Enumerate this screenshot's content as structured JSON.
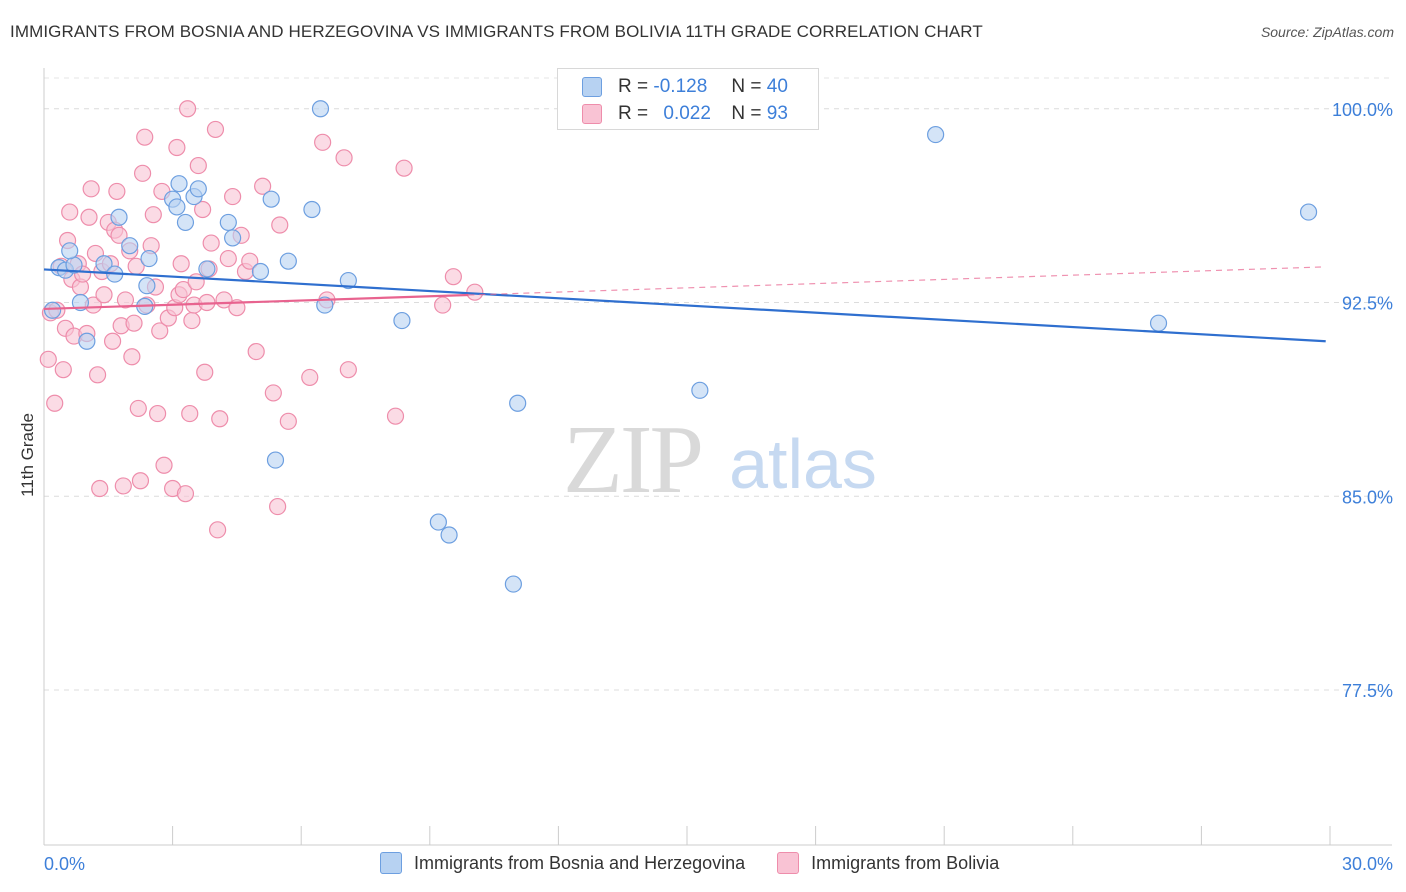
{
  "title": "IMMIGRANTS FROM BOSNIA AND HERZEGOVINA VS IMMIGRANTS FROM BOLIVIA 11TH GRADE CORRELATION CHART",
  "source": "Source: ZipAtlas.com",
  "watermark": {
    "zip": "ZIP",
    "atlas": "atlas"
  },
  "legend": {
    "r_label": "R =",
    "n_label": "N =",
    "rows": [
      {
        "r": "-0.128",
        "n": "40"
      },
      {
        "r": "0.022",
        "n": "93"
      }
    ]
  },
  "chart_data": {
    "type": "scatter",
    "title": "IMMIGRANTS FROM BOSNIA AND HERZEGOVINA VS IMMIGRANTS FROM BOLIVIA 11TH GRADE CORRELATION CHART",
    "xlabel": "",
    "ylabel": "11th Grade",
    "xlim": [
      0,
      30
    ],
    "ylim": [
      71.5,
      101.5
    ],
    "x_tick_labels": [
      "0.0%",
      "30.0%"
    ],
    "y_ticks": [
      77.5,
      85.0,
      92.5,
      100.0
    ],
    "y_tick_labels": [
      "77.5%",
      "85.0%",
      "92.5%",
      "100.0%"
    ],
    "grid": true,
    "colors": {
      "bosnia_fill": "#b7d2f2",
      "bosnia_stroke": "#6d9fe0",
      "bosnia_line": "#2f6fcf",
      "bolivia_fill": "#f9c3d4",
      "bolivia_stroke": "#ee8dab",
      "bolivia_line": "#e8638f",
      "axis_text": "#3d7fd9"
    },
    "series": [
      {
        "name": "Immigrants from Bosnia and Herzegovina",
        "r": -0.128,
        "n": 40,
        "trend": {
          "x": [
            0.0,
            29.9
          ],
          "y": [
            93.78,
            91.0
          ]
        },
        "x": [
          0.2,
          0.35,
          0.5,
          0.7,
          0.6,
          0.85,
          1.0,
          1.4,
          1.65,
          1.75,
          2.0,
          2.4,
          2.45,
          2.35,
          3.0,
          3.1,
          3.3,
          3.15,
          3.5,
          3.6,
          3.8,
          4.3,
          4.4,
          5.05,
          5.3,
          5.7,
          5.4,
          6.25,
          6.55,
          6.45,
          7.1,
          8.35,
          9.45,
          9.2,
          11.05,
          10.95,
          15.3,
          20.8,
          26.0,
          29.5
        ],
        "y": [
          92.2,
          93.85,
          93.75,
          93.95,
          94.5,
          92.5,
          91.0,
          94.0,
          93.6,
          95.8,
          94.7,
          93.15,
          94.2,
          92.35,
          96.5,
          96.2,
          95.6,
          97.1,
          96.6,
          96.9,
          93.8,
          95.6,
          95.0,
          93.7,
          96.5,
          94.1,
          86.4,
          96.1,
          92.4,
          100.0,
          93.35,
          91.8,
          83.5,
          84.0,
          88.6,
          81.6,
          89.1,
          99.0,
          91.7,
          96.0
        ]
      },
      {
        "name": "Immigrants from Bolivia",
        "r": 0.022,
        "n": 93,
        "trend": {
          "x": [
            0.0,
            29.9
          ],
          "y": [
            92.25,
            93.88
          ]
        },
        "x": [
          0.1,
          0.15,
          0.25,
          0.3,
          0.4,
          0.45,
          0.5,
          0.55,
          0.6,
          0.65,
          0.7,
          0.8,
          0.85,
          0.9,
          1.0,
          1.05,
          1.1,
          1.15,
          1.2,
          1.25,
          1.3,
          1.35,
          1.4,
          1.5,
          1.55,
          1.6,
          1.65,
          1.7,
          1.75,
          1.8,
          1.85,
          1.9,
          2.0,
          2.05,
          2.1,
          2.15,
          2.2,
          2.25,
          2.3,
          2.35,
          2.4,
          2.5,
          2.55,
          2.6,
          2.65,
          2.7,
          2.75,
          2.8,
          2.9,
          3.0,
          3.05,
          3.1,
          3.15,
          3.2,
          3.25,
          3.3,
          3.35,
          3.4,
          3.45,
          3.5,
          3.55,
          3.6,
          3.7,
          3.75,
          3.8,
          3.85,
          3.9,
          4.0,
          4.05,
          4.1,
          4.2,
          4.3,
          4.4,
          4.5,
          4.6,
          4.7,
          4.8,
          4.95,
          5.1,
          5.35,
          5.45,
          5.5,
          5.7,
          6.2,
          6.5,
          6.6,
          7.0,
          7.1,
          8.2,
          8.4,
          9.3,
          9.55,
          10.05
        ],
        "y": [
          90.3,
          92.1,
          88.6,
          92.2,
          93.9,
          89.9,
          91.5,
          94.9,
          96.0,
          93.4,
          91.2,
          94.0,
          93.1,
          93.6,
          91.3,
          95.8,
          96.9,
          92.4,
          94.4,
          89.7,
          85.3,
          93.7,
          92.8,
          95.6,
          94.0,
          91.0,
          95.3,
          96.8,
          95.1,
          91.6,
          85.4,
          92.6,
          94.5,
          90.4,
          91.7,
          93.9,
          88.4,
          85.6,
          97.5,
          98.9,
          92.4,
          94.7,
          95.9,
          93.1,
          88.2,
          91.4,
          96.8,
          86.2,
          91.9,
          85.3,
          92.3,
          98.5,
          92.8,
          94.0,
          93.0,
          85.1,
          100.0,
          88.2,
          91.8,
          92.4,
          93.3,
          97.8,
          96.1,
          89.8,
          92.5,
          93.8,
          94.8,
          99.2,
          83.7,
          88.0,
          92.6,
          94.2,
          96.6,
          92.3,
          95.1,
          93.7,
          94.1,
          90.6,
          97.0,
          89.0,
          84.6,
          95.5,
          87.9,
          89.6,
          98.7,
          92.6,
          98.1,
          89.9,
          88.1,
          97.7,
          92.4,
          93.5,
          92.9
        ]
      }
    ]
  },
  "bottom_legend": [
    {
      "label": "Immigrants from Bosnia and Herzegovina"
    },
    {
      "label": "Immigrants from Bolivia"
    }
  ]
}
